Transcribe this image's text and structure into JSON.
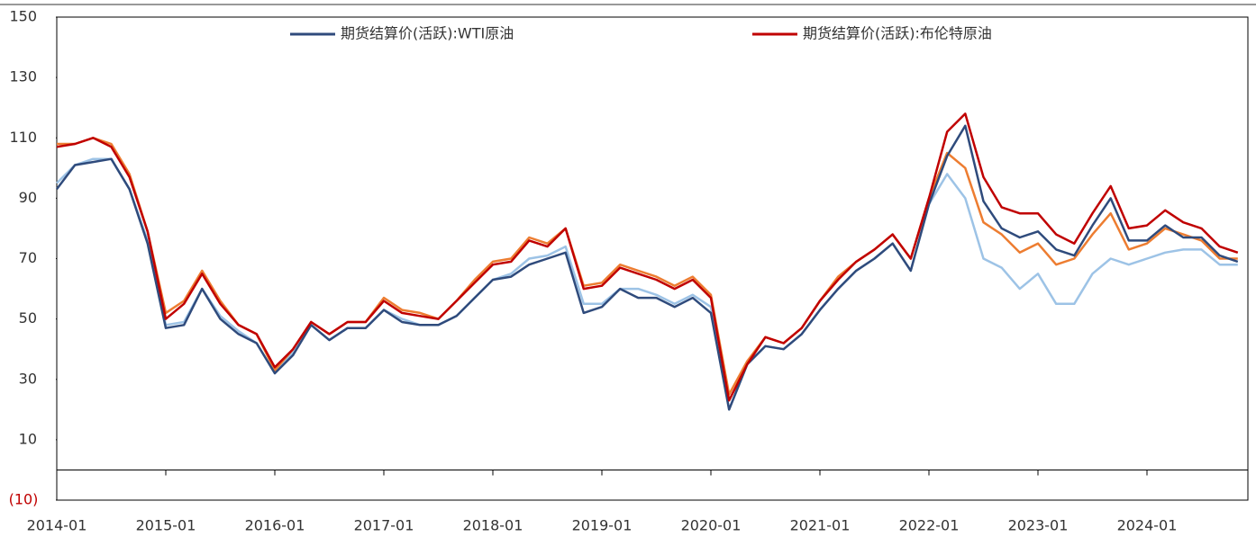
{
  "chart_data": {
    "type": "line",
    "x": [
      "2014-01",
      "2014-03",
      "2014-05",
      "2014-07",
      "2014-09",
      "2014-11",
      "2015-01",
      "2015-03",
      "2015-05",
      "2015-07",
      "2015-09",
      "2015-11",
      "2016-01",
      "2016-03",
      "2016-05",
      "2016-07",
      "2016-09",
      "2016-11",
      "2017-01",
      "2017-03",
      "2017-05",
      "2017-07",
      "2017-09",
      "2017-11",
      "2018-01",
      "2018-03",
      "2018-05",
      "2018-07",
      "2018-09",
      "2018-11",
      "2019-01",
      "2019-03",
      "2019-05",
      "2019-07",
      "2019-09",
      "2019-11",
      "2020-01",
      "2020-03",
      "2020-05",
      "2020-07",
      "2020-09",
      "2020-11",
      "2021-01",
      "2021-03",
      "2021-05",
      "2021-07",
      "2021-09",
      "2021-11",
      "2022-01",
      "2022-03",
      "2022-05",
      "2022-07",
      "2022-09",
      "2022-11",
      "2023-01",
      "2023-03",
      "2023-05",
      "2023-07",
      "2023-09",
      "2023-11",
      "2024-01",
      "2024-03",
      "2024-05",
      "2024-07",
      "2024-09",
      "2024-11"
    ],
    "xticks": [
      "2014-01",
      "2015-01",
      "2016-01",
      "2017-01",
      "2018-01",
      "2019-01",
      "2020-01",
      "2021-01",
      "2022-01",
      "2023-01",
      "2024-01"
    ],
    "ylim": [
      -10,
      150
    ],
    "yticks": [
      {
        "value": -10,
        "label": "(10)"
      },
      10,
      30,
      50,
      70,
      90,
      110,
      130,
      150
    ],
    "negative_tick_color": "#c00000",
    "legend": "top",
    "series": [
      {
        "color": "#9dc3e6",
        "values": [
          95,
          101,
          103,
          103,
          93,
          76,
          48,
          49,
          60,
          51,
          46,
          42,
          32,
          39,
          48,
          43,
          47,
          47,
          53,
          50,
          48,
          48,
          51,
          57,
          63,
          65,
          70,
          71,
          74,
          55,
          55,
          60,
          60,
          58,
          55,
          58,
          54,
          20,
          35,
          41,
          40,
          45,
          53,
          60,
          66,
          70,
          75,
          66,
          88,
          98,
          90,
          70,
          67,
          60,
          65,
          55,
          55,
          65,
          70,
          68,
          70,
          72,
          73,
          73,
          68,
          68
        ]
      },
      {
        "color": "#ed7d31",
        "values": [
          108,
          108,
          110,
          108,
          98,
          79,
          52,
          56,
          66,
          56,
          48,
          45,
          33,
          40,
          49,
          45,
          49,
          49,
          57,
          53,
          52,
          50,
          56,
          63,
          69,
          70,
          77,
          75,
          80,
          61,
          62,
          68,
          66,
          64,
          61,
          64,
          58,
          25,
          36,
          44,
          42,
          47,
          56,
          64,
          69,
          73,
          78,
          70,
          90,
          105,
          100,
          82,
          78,
          72,
          75,
          68,
          70,
          78,
          85,
          73,
          75,
          80,
          78,
          76,
          70,
          70
        ]
      },
      {
        "name": "期货结算价(活跃):WTI原油",
        "color": "#2f4b7c",
        "values": [
          93,
          101,
          102,
          103,
          93,
          75,
          47,
          48,
          60,
          50,
          45,
          42,
          32,
          38,
          48,
          43,
          47,
          47,
          53,
          49,
          48,
          48,
          51,
          57,
          63,
          64,
          68,
          70,
          72,
          52,
          54,
          60,
          57,
          57,
          54,
          57,
          52,
          20,
          35,
          41,
          40,
          45,
          53,
          60,
          66,
          70,
          75,
          66,
          88,
          104,
          114,
          89,
          80,
          77,
          79,
          73,
          71,
          81,
          90,
          76,
          76,
          81,
          77,
          77,
          71,
          69
        ]
      },
      {
        "name": "期货结算价(活跃):布伦特原油",
        "color": "#c00000",
        "values": [
          107,
          108,
          110,
          107,
          97,
          79,
          50,
          55,
          65,
          55,
          48,
          45,
          34,
          40,
          49,
          45,
          49,
          49,
          56,
          52,
          51,
          50,
          56,
          62,
          68,
          69,
          76,
          74,
          80,
          60,
          61,
          67,
          65,
          63,
          60,
          63,
          57,
          23,
          35,
          44,
          42,
          47,
          56,
          63,
          69,
          73,
          78,
          70,
          90,
          112,
          118,
          97,
          87,
          85,
          85,
          78,
          75,
          85,
          94,
          80,
          81,
          86,
          82,
          80,
          74,
          72
        ]
      }
    ]
  }
}
